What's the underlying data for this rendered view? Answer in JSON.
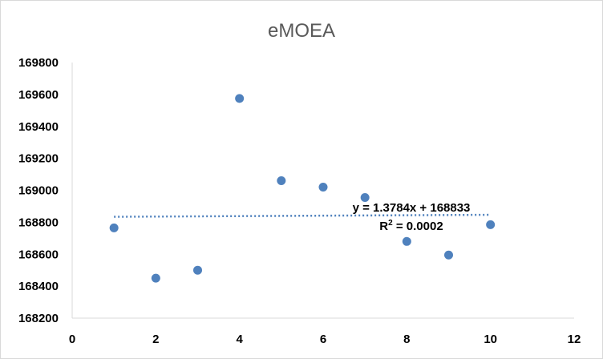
{
  "chart_data": {
    "type": "scatter",
    "title": "eMOEA",
    "xlabel": "",
    "ylabel": "",
    "xlim": [
      0,
      12
    ],
    "ylim": [
      168200,
      169800
    ],
    "x_ticks": [
      "0",
      "2",
      "4",
      "6",
      "8",
      "10",
      "12"
    ],
    "y_ticks": [
      "168200",
      "168400",
      "168600",
      "168800",
      "169000",
      "169200",
      "169400",
      "169600",
      "169800"
    ],
    "grid": false,
    "legend": "none",
    "marker_color": "#4f81bd",
    "points": [
      {
        "x": 1,
        "y": 168765
      },
      {
        "x": 2,
        "y": 168450
      },
      {
        "x": 3,
        "y": 168500
      },
      {
        "x": 4,
        "y": 169575
      },
      {
        "x": 5,
        "y": 169060
      },
      {
        "x": 6,
        "y": 169020
      },
      {
        "x": 7,
        "y": 168955
      },
      {
        "x": 8,
        "y": 168680
      },
      {
        "x": 9,
        "y": 168595
      },
      {
        "x": 10,
        "y": 168785
      }
    ],
    "trendline": {
      "type": "linear",
      "slope": 1.3784,
      "intercept": 168833,
      "x_range": [
        1,
        10
      ],
      "color": "#4f81bd",
      "style": "dotted",
      "equation_label": "y = 1.3784x + 168833",
      "r2_label_prefix": "R",
      "r2_label_sup": "2",
      "r2_label_value": " = 0.0002"
    }
  }
}
